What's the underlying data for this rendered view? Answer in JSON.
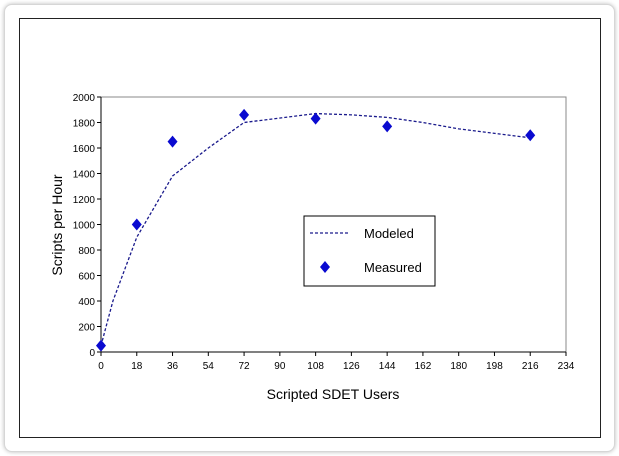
{
  "chart_data": {
    "type": "line",
    "xlabel": "Scripted SDET Users",
    "ylabel": "Scripts per Hour",
    "xlim": [
      0,
      234
    ],
    "ylim": [
      0,
      2000
    ],
    "xticks": [
      0,
      18,
      36,
      54,
      72,
      90,
      108,
      126,
      144,
      162,
      180,
      198,
      216,
      234
    ],
    "yticks": [
      0,
      200,
      400,
      600,
      800,
      1000,
      1200,
      1400,
      1600,
      1800,
      2000
    ],
    "grid": false,
    "legend_position": "center-right",
    "series": [
      {
        "name": "Modeled",
        "style": "dashed-line",
        "color": "#1a1a8c",
        "x": [
          0,
          6,
          18,
          36,
          54,
          72,
          108,
          126,
          144,
          162,
          180,
          216
        ],
        "y": [
          50,
          400,
          900,
          1380,
          1600,
          1800,
          1870,
          1860,
          1840,
          1800,
          1750,
          1680
        ]
      },
      {
        "name": "Measured",
        "style": "diamond-marker",
        "color": "#0a0ad0",
        "x": [
          0,
          18,
          36,
          72,
          108,
          144,
          216
        ],
        "y": [
          50,
          1000,
          1650,
          1860,
          1830,
          1770,
          1700
        ]
      }
    ]
  }
}
